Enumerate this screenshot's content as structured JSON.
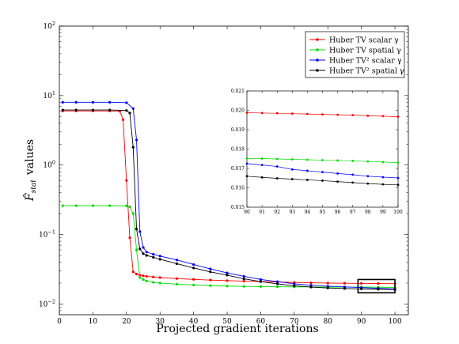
{
  "chart_data": [
    {
      "type": "line",
      "xlabel": "Projected gradient iterations",
      "ylabel": "F̂_stat  values",
      "ylabel_main": "F̂",
      "ylabel_sub": "stat",
      "ylabel_rest": "values",
      "yscale": "log",
      "xlim": [
        0,
        104
      ],
      "ylim": [
        0.007,
        100
      ],
      "xticks": [
        "0",
        "10",
        "20",
        "30",
        "40",
        "50",
        "60",
        "70",
        "80",
        "90",
        "100"
      ],
      "yticks": [
        {
          "value": 0.01,
          "base": "10",
          "exp": "−2"
        },
        {
          "value": 0.1,
          "base": "10",
          "exp": "−1"
        },
        {
          "value": 1,
          "base": "10",
          "exp": "0"
        },
        {
          "value": 10,
          "base": "10",
          "exp": "1"
        },
        {
          "value": 100,
          "base": "10",
          "exp": "2"
        }
      ],
      "legend_position": "top-right",
      "highlight_box": {
        "x": [
          89,
          100
        ],
        "y": [
          0.0145,
          0.0225
        ]
      },
      "series": [
        {
          "name": "Huber TV scalar γ",
          "color": "#ff0000",
          "x": [
            1,
            5,
            10,
            15,
            18,
            19,
            20,
            21,
            22,
            23,
            24,
            25,
            26,
            28,
            30,
            35,
            40,
            45,
            50,
            55,
            60,
            65,
            70,
            75,
            80,
            85,
            90,
            95,
            100
          ],
          "y": [
            6.0,
            6.0,
            6.0,
            6.0,
            5.95,
            4.5,
            0.6,
            0.09,
            0.029,
            0.027,
            0.026,
            0.0255,
            0.025,
            0.0245,
            0.024,
            0.0232,
            0.0226,
            0.0221,
            0.0217,
            0.0213,
            0.021,
            0.0207,
            0.0204,
            0.0202,
            0.02,
            0.0199,
            0.0198,
            0.0197,
            0.0196
          ]
        },
        {
          "name": "Huber TV spatial γ",
          "color": "#00dd00",
          "x": [
            1,
            5,
            10,
            15,
            20,
            21,
            22,
            23,
            24,
            25,
            26,
            28,
            30,
            35,
            40,
            45,
            50,
            55,
            60,
            65,
            70,
            75,
            80,
            85,
            90,
            95,
            100
          ],
          "y": [
            0.26,
            0.26,
            0.26,
            0.26,
            0.258,
            0.25,
            0.2,
            0.06,
            0.024,
            0.0225,
            0.0215,
            0.0205,
            0.02,
            0.0193,
            0.0188,
            0.0184,
            0.0181,
            0.0179,
            0.0178,
            0.0177,
            0.0176,
            0.0176,
            0.0175,
            0.0175,
            0.0175,
            0.0174,
            0.0173
          ]
        },
        {
          "name": "Huber TV² scalar γ",
          "color": "#0000ff",
          "x": [
            1,
            5,
            10,
            15,
            20,
            22,
            23,
            24,
            25,
            26,
            28,
            30,
            35,
            40,
            45,
            50,
            55,
            60,
            65,
            70,
            75,
            80,
            85,
            90,
            95,
            100
          ],
          "y": [
            8.0,
            8.0,
            8.0,
            8.0,
            7.9,
            6.5,
            2.3,
            0.11,
            0.065,
            0.056,
            0.052,
            0.049,
            0.043,
            0.037,
            0.032,
            0.028,
            0.025,
            0.0225,
            0.021,
            0.0195,
            0.0186,
            0.018,
            0.0176,
            0.0172,
            0.0168,
            0.0165
          ]
        },
        {
          "name": "Huber TV² spatial γ",
          "color": "#000000",
          "x": [
            1,
            5,
            10,
            15,
            20,
            21,
            22,
            23,
            24,
            25,
            26,
            28,
            30,
            35,
            40,
            45,
            50,
            55,
            60,
            65,
            70,
            75,
            80,
            85,
            90,
            95,
            100
          ],
          "y": [
            6.2,
            6.2,
            6.2,
            6.2,
            6.1,
            5.6,
            1.8,
            0.12,
            0.062,
            0.053,
            0.05,
            0.047,
            0.044,
            0.038,
            0.033,
            0.029,
            0.026,
            0.023,
            0.021,
            0.0195,
            0.0183,
            0.0175,
            0.017,
            0.0167,
            0.0165,
            0.0163,
            0.0161
          ]
        }
      ]
    },
    {
      "type": "line",
      "role": "inset",
      "xlim": [
        90,
        100
      ],
      "ylim": [
        0.015,
        0.021
      ],
      "xticks": [
        "90",
        "91",
        "92",
        "93",
        "94",
        "95",
        "96",
        "97",
        "98",
        "99",
        "100"
      ],
      "yticks": [
        "0.015",
        "0.016",
        "0.017",
        "0.018",
        "0.019",
        "0.020",
        "0.021"
      ],
      "series": [
        {
          "color": "#ff0000",
          "x": [
            90,
            91,
            92,
            93,
            94,
            95,
            96,
            97,
            98,
            99,
            100
          ],
          "y": [
            0.01988,
            0.01986,
            0.01985,
            0.01983,
            0.01981,
            0.01979,
            0.01977,
            0.01975,
            0.01972,
            0.0197,
            0.01967
          ]
        },
        {
          "color": "#00dd00",
          "x": [
            90,
            91,
            92,
            93,
            94,
            95,
            96,
            97,
            98,
            99,
            100
          ],
          "y": [
            0.01752,
            0.01751,
            0.01749,
            0.01747,
            0.01745,
            0.01743,
            0.01741,
            0.01739,
            0.01736,
            0.01733,
            0.0173
          ]
        },
        {
          "color": "#0000ff",
          "x": [
            90,
            91,
            92,
            93,
            94,
            95,
            96,
            97,
            98,
            99,
            100
          ],
          "y": [
            0.01725,
            0.01718,
            0.0171,
            0.01695,
            0.01688,
            0.01681,
            0.01674,
            0.01668,
            0.0166,
            0.01655,
            0.01651
          ]
        },
        {
          "color": "#000000",
          "x": [
            90,
            91,
            92,
            93,
            94,
            95,
            96,
            97,
            98,
            99,
            100
          ],
          "y": [
            0.0166,
            0.01654,
            0.01649,
            0.01645,
            0.01641,
            0.01637,
            0.01632,
            0.01627,
            0.01622,
            0.01618,
            0.01615
          ]
        }
      ]
    }
  ]
}
